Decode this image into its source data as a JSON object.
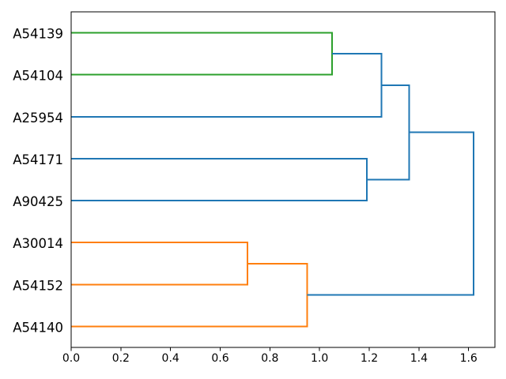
{
  "figure": {
    "background": "#ffffff",
    "title": ""
  },
  "chart_data": {
    "type": "dendrogram",
    "orientation": "left_leaves_root_right",
    "title": "",
    "xlabel": "",
    "ylabel": "",
    "grid": false,
    "leaves": [
      "A54139",
      "A54104",
      "A25954",
      "A54171",
      "A90425",
      "A30014",
      "A54152",
      "A54140"
    ],
    "merges": [
      {
        "id": "orange-1",
        "a": "A30014",
        "b": "A54152",
        "height": 0.71,
        "color": "#ff7f0e"
      },
      {
        "id": "orange-2",
        "a": "orange-1",
        "b": "A54140",
        "height": 0.95,
        "color": "#ff7f0e"
      },
      {
        "id": "green-1",
        "a": "A54139",
        "b": "A54104",
        "height": 1.05,
        "color": "#2ca02c"
      },
      {
        "id": "blue-1",
        "a": "A54171",
        "b": "A90425",
        "height": 1.19,
        "color": "#1f77b4"
      },
      {
        "id": "blue-2",
        "a": "green-1",
        "b": "A25954",
        "height": 1.25,
        "color": "#1f77b4"
      },
      {
        "id": "blue-3",
        "a": "blue-2",
        "b": "blue-1",
        "height": 1.36,
        "color": "#1f77b4"
      },
      {
        "id": "root",
        "a": "blue-3",
        "b": "orange-2",
        "height": 1.62,
        "color": "#1f77b4"
      }
    ],
    "x_axis": {
      "tick_labels": [
        "0.0",
        "0.2",
        "0.4",
        "0.6",
        "0.8",
        "1.0",
        "1.2",
        "1.4",
        "1.6"
      ],
      "tick_values": [
        0.0,
        0.2,
        0.4,
        0.6,
        0.8,
        1.0,
        1.2,
        1.4,
        1.6
      ],
      "range": [
        0,
        1.706
      ]
    },
    "colors": {
      "above_threshold_link": "#1f77b4",
      "cluster_orange": "#ff7f0e",
      "cluster_green": "#2ca02c",
      "spine": "#000000",
      "tick": "#000000"
    }
  }
}
